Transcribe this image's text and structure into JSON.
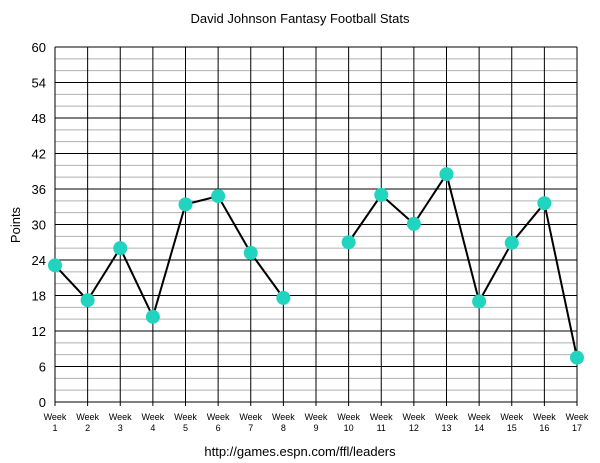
{
  "chart_data": {
    "type": "line",
    "title": "David Johnson Fantasy Football Stats",
    "ylabel": "Points",
    "xlabel": "",
    "footer": "http://games.espn.com/ffl/leaders",
    "categories": [
      "Week 1",
      "Week 2",
      "Week 3",
      "Week 4",
      "Week 5",
      "Week 6",
      "Week 7",
      "Week 8",
      "Week 9",
      "Week 10",
      "Week 11",
      "Week 12",
      "Week 13",
      "Week 14",
      "Week 15",
      "Week 16",
      "Week 17"
    ],
    "ylim": [
      0,
      60
    ],
    "yticks": [
      0,
      6,
      12,
      18,
      24,
      30,
      36,
      42,
      48,
      54,
      60
    ],
    "grid": true,
    "series": [
      {
        "values": [
          23.1,
          17.2,
          26.0,
          14.4,
          33.4,
          34.8,
          25.2,
          17.6,
          null,
          27.0,
          35.0,
          30.1,
          38.5,
          17.0,
          26.9,
          33.6,
          7.5
        ]
      }
    ],
    "colors": {
      "line": "#000000",
      "marker": "#20d4c0",
      "grid": "#000000",
      "minor_grid": "#b0b0b0"
    }
  }
}
